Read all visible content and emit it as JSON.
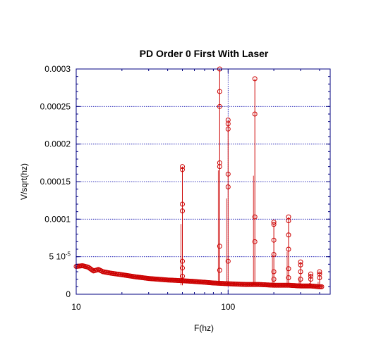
{
  "chart_data": {
    "type": "line",
    "title": "PD Order 0 First With Laser",
    "xlabel": "F(hz)",
    "ylabel": "V/sqrt(hz)",
    "x_scale": "log",
    "xlim": [
      10,
      470
    ],
    "ylim": [
      0,
      0.0003
    ],
    "grid": true,
    "x_ticks": [
      {
        "value": 10,
        "label": "10"
      },
      {
        "value": 100,
        "label": "100"
      }
    ],
    "y_ticks": [
      {
        "value": 0,
        "label": "0"
      },
      {
        "value": 5e-05,
        "label": "5 10",
        "superscript": "-5"
      },
      {
        "value": 0.0001,
        "label": "0.0001"
      },
      {
        "value": 0.00015,
        "label": "0.00015"
      },
      {
        "value": 0.0002,
        "label": "0.0002"
      },
      {
        "value": 0.00025,
        "label": "0.00025"
      },
      {
        "value": 0.0003,
        "label": "0.0003"
      }
    ],
    "colors": {
      "series": "#cc0000",
      "grid": "#0000aa",
      "frame": "#000080"
    },
    "series": [
      {
        "baseline": [
          [
            10,
            3.7e-05
          ],
          [
            11,
            3.8e-05
          ],
          [
            12,
            3.6e-05
          ],
          [
            13,
            3.1e-05
          ],
          [
            14,
            3.3e-05
          ],
          [
            15,
            3e-05
          ],
          [
            17,
            2.8e-05
          ],
          [
            20,
            2.6e-05
          ],
          [
            25,
            2.3e-05
          ],
          [
            30,
            2.1e-05
          ],
          [
            40,
            1.9e-05
          ],
          [
            50,
            1.8e-05
          ],
          [
            60,
            1.7e-05
          ],
          [
            70,
            1.6e-05
          ],
          [
            80,
            1.5e-05
          ],
          [
            100,
            1.4e-05
          ],
          [
            130,
            1.3e-05
          ],
          [
            160,
            1.3e-05
          ],
          [
            200,
            1.2e-05
          ],
          [
            250,
            1.2e-05
          ],
          [
            300,
            1.1e-05
          ],
          [
            350,
            1.1e-05
          ],
          [
            400,
            1e-05
          ],
          [
            420,
            1e-05
          ]
        ],
        "peaks": [
          {
            "x": 50,
            "values": [
              2.4e-05,
              3.5e-05,
              4.4e-05,
              0.000111,
              0.00012,
              0.000166,
              0.00017
            ]
          },
          {
            "x": 88,
            "values": [
              3.2e-05,
              6.4e-05,
              0.00017,
              0.000175,
              0.00025,
              0.00027,
              0.0003
            ]
          },
          {
            "x": 100,
            "values": [
              4.4e-05,
              0.000143,
              0.00016,
              0.00022,
              0.000227,
              0.000232
            ]
          },
          {
            "x": 150,
            "values": [
              7e-05,
              0.000103,
              0.00024,
              0.000287
            ]
          },
          {
            "x": 200,
            "values": [
              2e-05,
              3e-05,
              5.3e-05,
              7.2e-05,
              9.3e-05,
              9.6e-05
            ]
          },
          {
            "x": 250,
            "values": [
              2.2e-05,
              3.4e-05,
              6e-05,
              7.9e-05,
              9.8e-05,
              0.000103
            ]
          },
          {
            "x": 300,
            "values": [
              2e-05,
              3e-05,
              3.9e-05,
              4.3e-05
            ]
          },
          {
            "x": 350,
            "values": [
              2e-05,
              2.4e-05,
              2.7e-05
            ]
          },
          {
            "x": 400,
            "values": [
              2.2e-05,
              2.7e-05,
              3e-05
            ]
          }
        ]
      }
    ]
  }
}
